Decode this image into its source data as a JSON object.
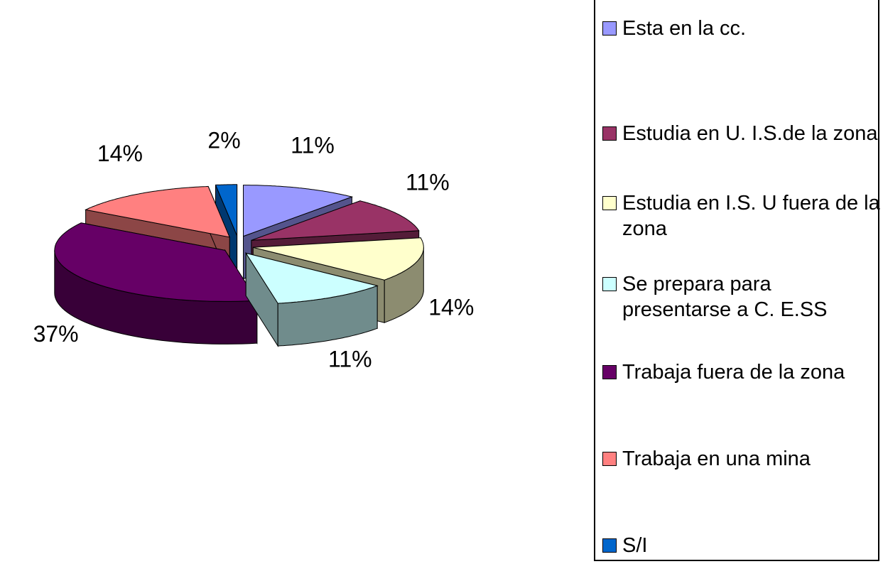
{
  "chart_data": {
    "type": "pie3d",
    "categories": [
      "Esta en la cc.",
      "Estudia en U. I.S.de la zona",
      "Estudia en I.S. U fuera de la zona",
      "Se prepara para presentarse a C. E.SS",
      "Trabaja fuera de la zona",
      "Trabaja en una mina",
      "S/I"
    ],
    "values": [
      11,
      11,
      14,
      11,
      37,
      14,
      2
    ],
    "value_labels": [
      "11%",
      "11%",
      "14%",
      "11%",
      "37%",
      "14%",
      "2%"
    ],
    "colors": [
      "#9999ff",
      "#993366",
      "#ffffcc",
      "#ccffff",
      "#660066",
      "#ff8080",
      "#0066cc"
    ],
    "legend": "right"
  }
}
